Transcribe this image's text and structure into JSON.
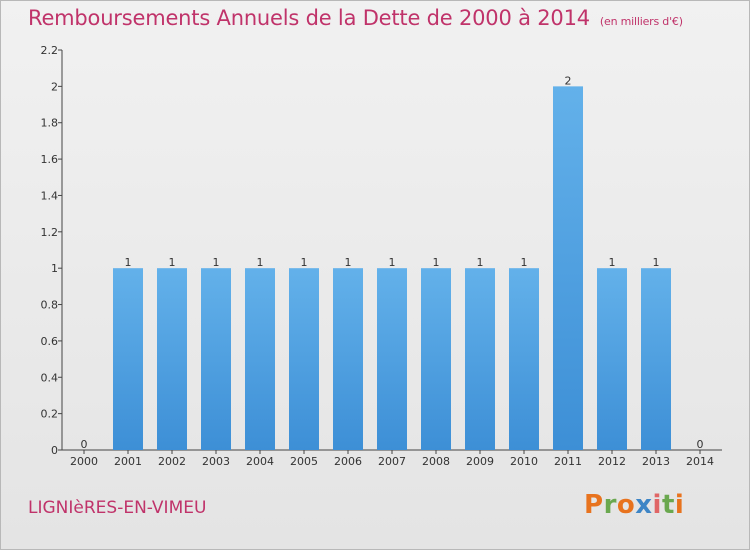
{
  "title": "Remboursements Annuels de la Dette de 2000 à 2014",
  "unit": "(en milliers d'€)",
  "commune": "LIGNIèRES-EN-VIMEU",
  "logo": {
    "letters": [
      "P",
      "r",
      "o",
      "x",
      "i",
      "t",
      "i"
    ],
    "colors": [
      "#e8731e",
      "#6aa84f",
      "#e8731e",
      "#3d85c6",
      "#e06666",
      "#6aa84f",
      "#e8731e"
    ]
  },
  "colors": {
    "bar": "#3d8fd6",
    "bar_light": "#63b1ea",
    "title": "#c0336a"
  },
  "chart_data": {
    "type": "bar",
    "categories": [
      "2000",
      "2001",
      "2002",
      "2003",
      "2004",
      "2005",
      "2006",
      "2007",
      "2008",
      "2009",
      "2010",
      "2011",
      "2012",
      "2013",
      "2014"
    ],
    "values": [
      0,
      1,
      1,
      1,
      1,
      1,
      1,
      1,
      1,
      1,
      1,
      2,
      1,
      1,
      0
    ],
    "data_labels": [
      "0",
      "1",
      "1",
      "1",
      "1",
      "1",
      "1",
      "1",
      "1",
      "1",
      "1",
      "2",
      "1",
      "1",
      "0"
    ],
    "yticks": [
      "0",
      "0.2",
      "0.4",
      "0.6",
      "0.8",
      "1",
      "1.2",
      "1.4",
      "1.6",
      "1.8",
      "2",
      "2.2"
    ],
    "ylim": [
      0,
      2.2
    ],
    "grid": false,
    "xlabel": "",
    "ylabel": ""
  }
}
